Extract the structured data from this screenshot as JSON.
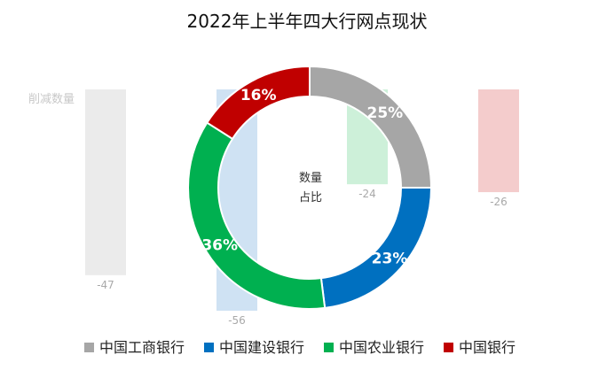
{
  "chart_data": {
    "title": "2022年上半年四大行网点现状",
    "bar_series_label": "削减数量",
    "donut_center_label": [
      "数量",
      "占比"
    ],
    "categories": [
      "中国工商银行",
      "中国建设银行",
      "中国农业银行",
      "中国银行"
    ],
    "colors": [
      "#a6a6a6",
      "#0070c0",
      "#00b050",
      "#c00000"
    ],
    "bar_colors": [
      "#ebebeb",
      "#cfe2f3",
      "#cdf0d9",
      "#f4cccc"
    ],
    "reduction_values": [
      -47,
      -56,
      -24,
      -26
    ],
    "reduction_labels": [
      "-47",
      "-56",
      "-24",
      "-26"
    ],
    "reduction_ylim": [
      -56,
      0
    ],
    "share_values": [
      25,
      23,
      36,
      16
    ],
    "share_labels": [
      "25%",
      "23%",
      "36%",
      "16%"
    ],
    "series": [
      {
        "name": "削减数量",
        "type": "bar",
        "values": [
          -47,
          -56,
          -24,
          -26
        ]
      },
      {
        "name": "数量占比",
        "type": "donut",
        "values": [
          25,
          23,
          36,
          16
        ]
      }
    ],
    "legend": {
      "entries": [
        "中国工商银行",
        "中国建设银行",
        "中国农业银行",
        "中国银行"
      ],
      "placement": "bottom"
    }
  }
}
